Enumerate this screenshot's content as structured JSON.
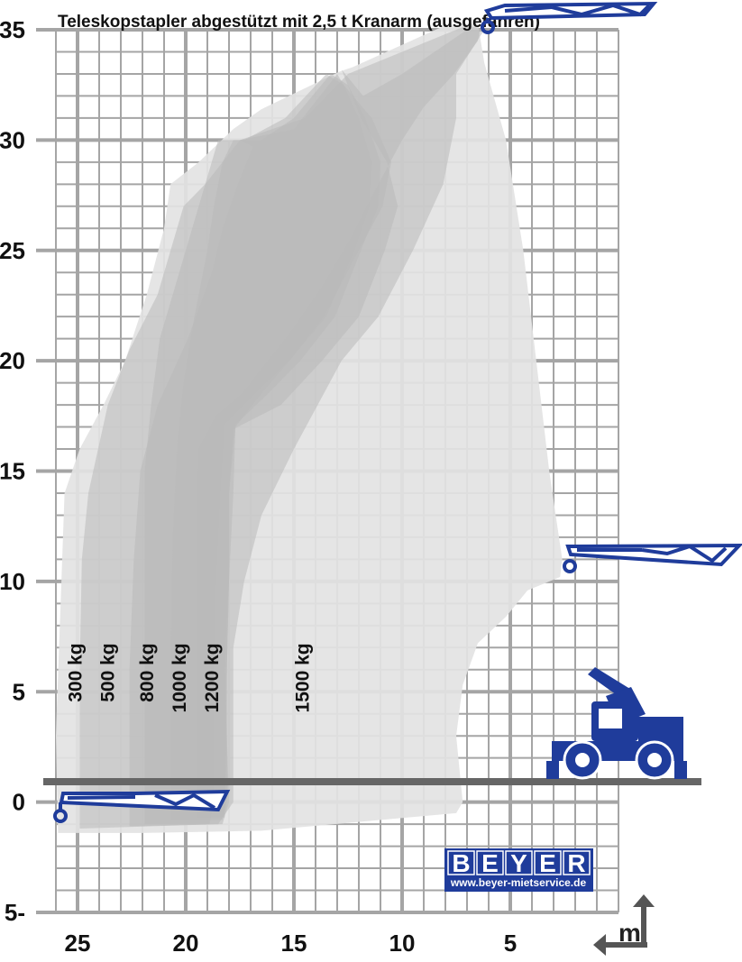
{
  "chart_data": {
    "type": "area",
    "title": "Teleskopstapler abgestützt mit 2,5 t Kranarm (ausgefahren)",
    "x_unit": "m",
    "xlim": [
      26,
      0
    ],
    "ylim": [
      -5,
      35
    ],
    "x_ticks": [
      25,
      20,
      15,
      10,
      5
    ],
    "y_ticks": [
      {
        "value": 35,
        "label": "35"
      },
      {
        "value": 30,
        "label": "30"
      },
      {
        "value": 25,
        "label": "25"
      },
      {
        "value": 20,
        "label": "20"
      },
      {
        "value": 15,
        "label": "15"
      },
      {
        "value": 10,
        "label": "10"
      },
      {
        "value": 5,
        "label": "5"
      },
      {
        "value": 0,
        "label": "0"
      },
      {
        "value": -5,
        "label": "5-"
      }
    ],
    "grid": true,
    "series": [
      {
        "name": "300 kg",
        "label_x": 25.1,
        "polygon": [
          [
            25.9,
            -1.4
          ],
          [
            26.0,
            3
          ],
          [
            25.6,
            14
          ],
          [
            24.9,
            16
          ],
          [
            23.8,
            18
          ],
          [
            22.8,
            20
          ],
          [
            21.8,
            23
          ],
          [
            21.0,
            26
          ],
          [
            20.7,
            28
          ],
          [
            19.4,
            29
          ],
          [
            17.8,
            30.5
          ],
          [
            16.5,
            31.4
          ],
          [
            12.9,
            33.1
          ],
          [
            12.3,
            33.3
          ],
          [
            8.0,
            35.2
          ],
          [
            6.5,
            35.3
          ],
          [
            6.2,
            33.5
          ],
          [
            5.2,
            30
          ],
          [
            4.4,
            25
          ],
          [
            3.8,
            20
          ],
          [
            3.2,
            15
          ],
          [
            2.6,
            11
          ],
          [
            2.7,
            10.2
          ],
          [
            4.2,
            9.6
          ],
          [
            5.2,
            8.4
          ],
          [
            6.5,
            7.2
          ],
          [
            7.2,
            5.3
          ],
          [
            7.5,
            3
          ],
          [
            7.2,
            0
          ],
          [
            7.5,
            -0.5
          ],
          [
            16.5,
            -1.3
          ],
          [
            22.0,
            -1.4
          ]
        ]
      },
      {
        "name": "500 kg",
        "label_x": 23.6,
        "polygon": [
          [
            24.9,
            -1.2
          ],
          [
            24.9,
            6
          ],
          [
            24.8,
            11
          ],
          [
            24.5,
            14
          ],
          [
            23.6,
            18
          ],
          [
            22.6,
            20.5
          ],
          [
            21.3,
            23
          ],
          [
            20.1,
            27
          ],
          [
            19.1,
            28
          ],
          [
            17.5,
            30
          ],
          [
            14.5,
            31
          ],
          [
            12.5,
            33
          ],
          [
            7.0,
            35.2
          ],
          [
            6.2,
            35
          ],
          [
            7.5,
            33
          ],
          [
            7.5,
            31
          ],
          [
            8.1,
            28
          ],
          [
            9.5,
            25
          ],
          [
            11.1,
            22
          ],
          [
            12.8,
            20
          ],
          [
            15.0,
            16
          ],
          [
            16.5,
            13
          ],
          [
            17.3,
            10
          ],
          [
            17.8,
            7
          ],
          [
            17.8,
            0
          ],
          [
            18.5,
            -1.0
          ]
        ]
      },
      {
        "name": "800 kg",
        "label_x": 21.8,
        "polygon": [
          [
            22.6,
            -1.1
          ],
          [
            22.6,
            6
          ],
          [
            22.4,
            11
          ],
          [
            22.1,
            15
          ],
          [
            21.3,
            18
          ],
          [
            19.9,
            21
          ],
          [
            18.8,
            24
          ],
          [
            18.3,
            26
          ],
          [
            17.6,
            28
          ],
          [
            16.9,
            29.7
          ],
          [
            17.5,
            30
          ],
          [
            15.0,
            30.5
          ],
          [
            13.0,
            33
          ],
          [
            12.7,
            32.5
          ],
          [
            11.4,
            31
          ],
          [
            10.5,
            29
          ],
          [
            10.9,
            27
          ],
          [
            12.0,
            25
          ],
          [
            13.6,
            22
          ],
          [
            15.2,
            20
          ],
          [
            16.5,
            18.5
          ],
          [
            17.7,
            17.0
          ],
          [
            18.0,
            14
          ],
          [
            18.0,
            10
          ],
          [
            18.2,
            6
          ],
          [
            18.0,
            0
          ],
          [
            18.3,
            -1.0
          ]
        ]
      },
      {
        "name": "1000 kg",
        "label_x": 20.3,
        "polygon": [
          [
            21.9,
            -1.0
          ],
          [
            21.9,
            6
          ],
          [
            21.9,
            11
          ],
          [
            21.9,
            15
          ],
          [
            21.6,
            18
          ],
          [
            21.2,
            21
          ],
          [
            20.3,
            24
          ],
          [
            19.7,
            26
          ],
          [
            19.1,
            28
          ],
          [
            18.5,
            30
          ],
          [
            17.3,
            30
          ],
          [
            15.4,
            31
          ],
          [
            13.5,
            33
          ],
          [
            12.7,
            32.5
          ],
          [
            12.0,
            31
          ],
          [
            11.4,
            29
          ],
          [
            11.5,
            27
          ],
          [
            12.2,
            25
          ],
          [
            13.5,
            22
          ],
          [
            15.2,
            20
          ],
          [
            16.8,
            18.5
          ],
          [
            18.2,
            17.1
          ],
          [
            18.4,
            14
          ],
          [
            18.6,
            10
          ],
          [
            18.7,
            6
          ],
          [
            18.7,
            0
          ],
          [
            18.9,
            -1.0
          ]
        ]
      },
      {
        "name": "1200 kg",
        "label_x": 18.8,
        "polygon": [
          [
            20.7,
            -0.8
          ],
          [
            20.7,
            6
          ],
          [
            20.6,
            12
          ],
          [
            20.4,
            16
          ],
          [
            20.1,
            19
          ],
          [
            19.6,
            22
          ],
          [
            19.0,
            25
          ],
          [
            18.7,
            27
          ],
          [
            18.3,
            29
          ],
          [
            17.8,
            30
          ],
          [
            16.5,
            30
          ],
          [
            15.0,
            31
          ],
          [
            13.3,
            33
          ],
          [
            12.5,
            32.5
          ],
          [
            11.7,
            31
          ],
          [
            11.0,
            29
          ],
          [
            11.1,
            27
          ],
          [
            11.9,
            25
          ],
          [
            13.1,
            22
          ],
          [
            14.7,
            20
          ],
          [
            16.2,
            18.5
          ],
          [
            17.7,
            17.1
          ],
          [
            17.8,
            14
          ],
          [
            18.0,
            10
          ],
          [
            18.1,
            6
          ],
          [
            18.1,
            0
          ],
          [
            18.3,
            -0.8
          ]
        ]
      },
      {
        "name": "1500 kg",
        "label_x": 14.6,
        "polygon": [
          [
            19.5,
            -0.7
          ],
          [
            19.5,
            6
          ],
          [
            19.5,
            11
          ],
          [
            19.4,
            16
          ],
          [
            18.6,
            17.5
          ],
          [
            17.4,
            18.5
          ],
          [
            16.2,
            20
          ],
          [
            15.0,
            21.5
          ],
          [
            13.6,
            23.5
          ],
          [
            12.4,
            25.5
          ],
          [
            11.1,
            28
          ],
          [
            10.0,
            30
          ],
          [
            9.0,
            31.5
          ],
          [
            7.6,
            33
          ],
          [
            6.5,
            34.5
          ],
          [
            6.4,
            35
          ],
          [
            7.0,
            35
          ],
          [
            8.5,
            34
          ],
          [
            10.0,
            33
          ],
          [
            11.8,
            32
          ],
          [
            12.8,
            33.2
          ],
          [
            11.9,
            31
          ],
          [
            10.7,
            29
          ],
          [
            10.2,
            27
          ],
          [
            10.8,
            25
          ],
          [
            12.0,
            22
          ],
          [
            13.7,
            20
          ],
          [
            15.6,
            18
          ],
          [
            17.8,
            16.9
          ],
          [
            18.0,
            14
          ],
          [
            18.0,
            10
          ],
          [
            18.1,
            6
          ],
          [
            18.2,
            0
          ],
          [
            18.2,
            -0.7
          ]
        ]
      }
    ]
  },
  "logo": {
    "letters": [
      "B",
      "E",
      "Y",
      "E",
      "R"
    ],
    "url": "www.beyer-mietservice.de"
  },
  "colors": {
    "grid": "#a5a5a5",
    "ground": "#666666",
    "envelope_light": "#e3e3e3",
    "envelope_dark": "#b9b9b9",
    "crane_blue": "#1f3c9b"
  },
  "icons": [
    "crane-arm-top-icon",
    "crane-arm-mid-icon",
    "crane-arm-low-icon",
    "telehandler-icon",
    "axis-arrow-icon"
  ]
}
